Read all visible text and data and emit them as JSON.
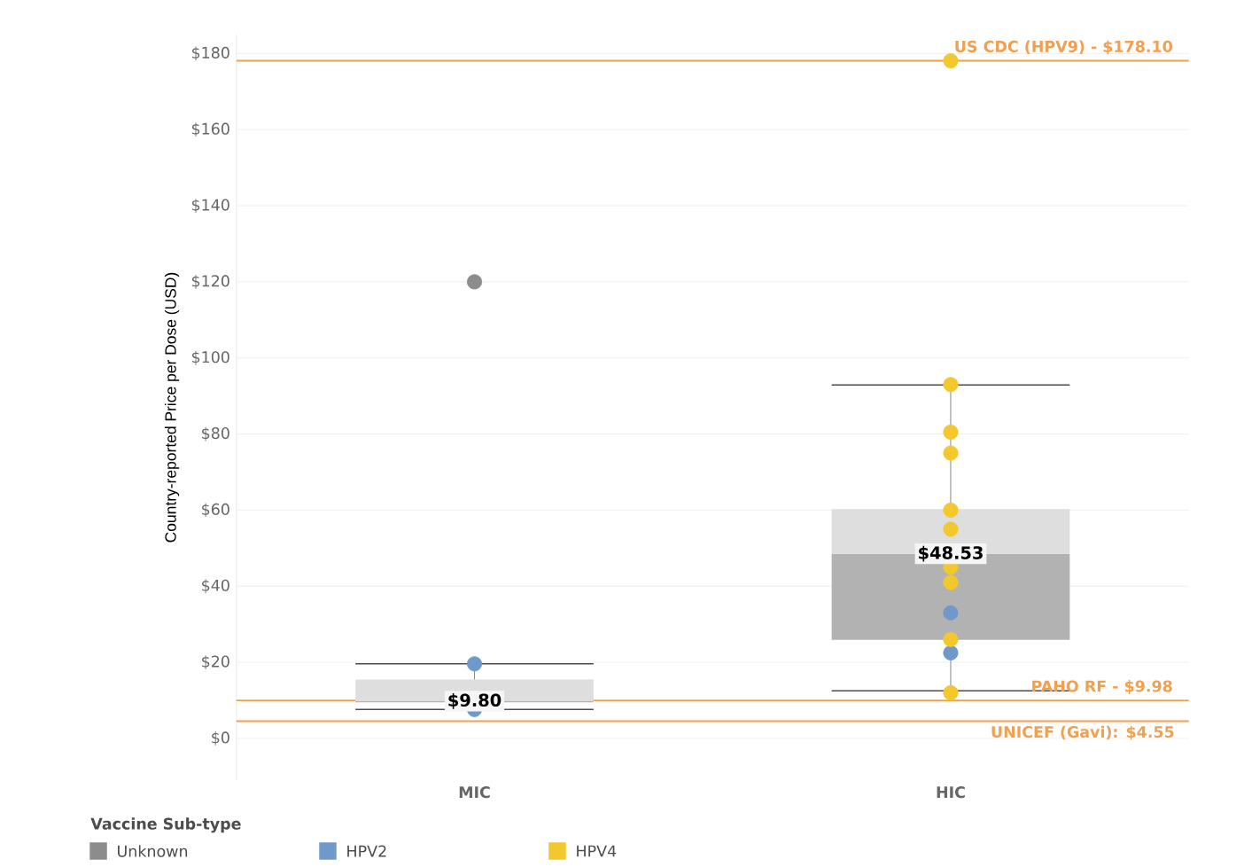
{
  "chart_data": {
    "type": "box",
    "ylabel": "Country-reported Price per Dose (USD)",
    "legend_title": "Vaccine Sub-type",
    "categories": [
      "MIC",
      "HIC"
    ],
    "boxes": [
      {
        "low": 7.6,
        "q1": 9.5,
        "median": 9.8,
        "q3": 15.5,
        "high": 19.6
      },
      {
        "low": 12.5,
        "q1": 25.9,
        "median": 48.53,
        "q3": 60.3,
        "high": 92.9
      }
    ],
    "series": [
      {
        "name": "Unknown",
        "type": "scatter",
        "color": "#8c8c8c",
        "x": [
          "MIC"
        ],
        "values": [
          120
        ]
      },
      {
        "name": "HPV2",
        "type": "scatter",
        "color": "#7099c9",
        "x": [
          "MIC",
          "MIC",
          "HIC",
          "HIC",
          "HIC"
        ],
        "values": [
          19.6,
          7.6,
          null,
          33,
          22.5
        ]
      },
      {
        "name": "HPV4",
        "type": "scatter",
        "color": "#f2c82c",
        "x": [
          "HIC",
          "HIC",
          "HIC",
          "HIC",
          "HIC",
          "HIC",
          "HIC",
          "HIC",
          "HIC",
          "HIC"
        ],
        "values": [
          178.1,
          93,
          80.5,
          75,
          60,
          55,
          45,
          41,
          26,
          12
        ]
      }
    ],
    "ylim": [
      -11,
      185
    ],
    "yticks": [
      {
        "value": 0,
        "label": "$0"
      },
      {
        "value": 20,
        "label": "$20"
      },
      {
        "value": 40,
        "label": "$40"
      },
      {
        "value": 60,
        "label": "$60"
      },
      {
        "value": 80,
        "label": "$80"
      },
      {
        "value": 100,
        "label": "$100"
      },
      {
        "value": 120,
        "label": "$120"
      },
      {
        "value": 140,
        "label": "$140"
      },
      {
        "value": 160,
        "label": "$160"
      },
      {
        "value": 180,
        "label": "$180"
      }
    ],
    "ref_lines": [
      {
        "axis": "y",
        "value": 178.1,
        "label": "US CDC (HPV9) - $178.10",
        "color": "#f0a050"
      },
      {
        "axis": "y",
        "value": 9.98,
        "label": "PAHO RF - $9.98",
        "color": "#f0a050"
      },
      {
        "axis": "y",
        "value": 4.55,
        "label": "UNICEF (Gavi): $4.55",
        "color": "#f0a050"
      }
    ],
    "annotations": [
      {
        "text": "$9.80",
        "x": "MIC",
        "y": 9.8
      },
      {
        "text": "$48.53",
        "x": "HIC",
        "y": 48.53
      }
    ],
    "grid": "y",
    "legend": "bottom left"
  }
}
